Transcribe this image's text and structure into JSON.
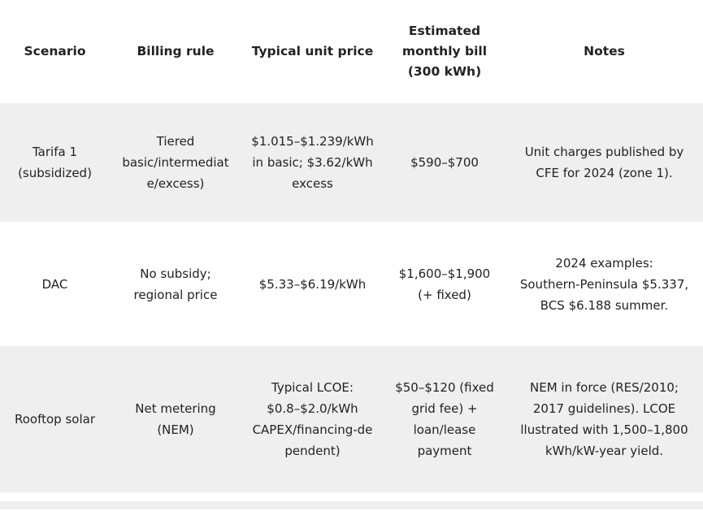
{
  "colors": {
    "row_stripe": "#efefef",
    "text": "#222222",
    "background": "#ffffff"
  },
  "table": {
    "headers": [
      "Scenario",
      "Billing rule",
      "Typical unit price",
      "Estimated\nmonthly bill\n(300 kWh)",
      "Notes"
    ],
    "rows": [
      {
        "cells": [
          "Tarifa 1\n(subsidized)",
          "Tiered\nbasic/intermediat\ne/excess)",
          "$1.015–$1.239/kWh\nin basic; $3.62/kWh\nexcess",
          "$590–$700",
          "Unit charges published by\nCFE for 2024 (zone 1)."
        ]
      },
      {
        "cells": [
          "DAC",
          "No subsidy;\nregional price",
          "$5.33–$6.19/kWh",
          "$1,600–$1,900\n(+ fixed)",
          "2024 examples:\nSouthern-Peninsula $5.337,\nBCS $6.188 summer."
        ]
      },
      {
        "cells": [
          "Rooftop solar",
          "Net metering\n(NEM)",
          "Typical LCOE:\n$0.8–$2.0/kWh\nCAPEX/financing-de\npendent)",
          "$50–$120 (fixed\ngrid fee) +\nloan/lease\npayment",
          "NEM in force (RES/2010;\n2017 guidelines). LCOE\nllustrated with 1,500–1,800\nkWh/kW-year yield."
        ]
      }
    ]
  },
  "chart_data": {
    "type": "table",
    "title": "",
    "columns": [
      "Scenario",
      "Billing rule",
      "Typical unit price",
      "Estimated monthly bill (300 kWh)",
      "Notes"
    ],
    "rows": [
      [
        "Tarifa 1 (subsidized)",
        "Tiered basic/intermediate/excess)",
        "$1.015–$1.239/kWh in basic; $3.62/kWh excess",
        "$590–$700",
        "Unit charges published by CFE for 2024 (zone 1)."
      ],
      [
        "DAC",
        "No subsidy; regional price",
        "$5.33–$6.19/kWh",
        "$1,600–$1,900 (+ fixed)",
        "2024 examples: Southern-Peninsula $5.337, BCS $6.188 summer."
      ],
      [
        "Rooftop solar",
        "Net metering (NEM)",
        "Typical LCOE: $0.8–$2.0/kWh CAPEX/financing-dependent)",
        "$50–$120 (fixed grid fee) + loan/lease payment",
        "NEM in force (RES/2010; 2017 guidelines). LCOE llustrated with 1,500–1,800 kWh/kW-year yield."
      ]
    ],
    "layout": {
      "striped_rows": "alternating starting with row 1",
      "alignment": "center",
      "grid": false
    }
  }
}
